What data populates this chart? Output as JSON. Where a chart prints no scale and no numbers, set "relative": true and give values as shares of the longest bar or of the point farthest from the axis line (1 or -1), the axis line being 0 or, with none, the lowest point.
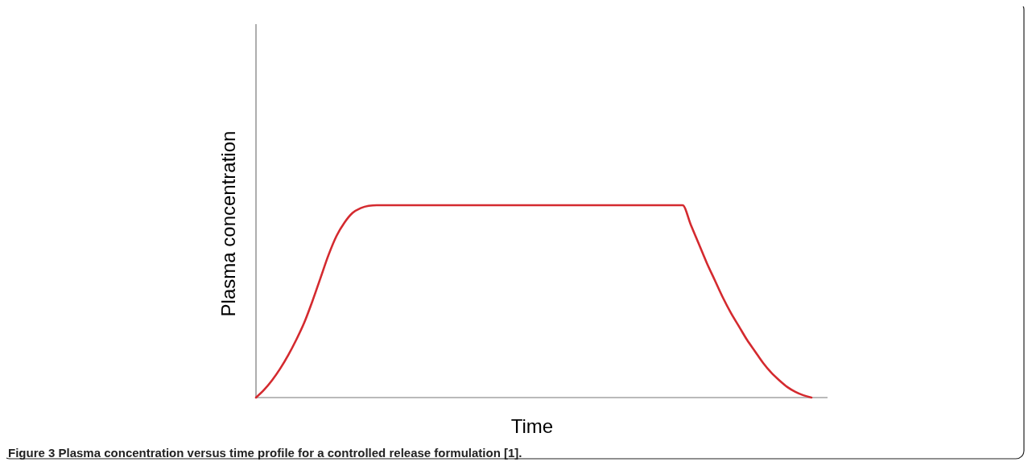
{
  "chart_data": {
    "type": "line",
    "relative": true,
    "xlabel": "Time",
    "ylabel": "Plasma concentration",
    "annotations": [
      "Figure 3 Plasma concentration versus time profile for a controlled release formulation [1]."
    ],
    "categories": [
      null,
      null,
      null,
      null,
      null,
      null,
      null,
      null,
      null,
      null,
      null,
      null,
      null,
      null,
      null,
      null,
      null,
      null,
      null,
      null,
      null,
      null,
      null,
      null,
      null,
      null,
      null,
      null,
      null,
      null,
      null,
      null,
      null,
      null,
      null,
      null,
      null,
      null,
      null,
      null,
      null,
      null,
      null,
      null,
      null,
      null,
      null,
      null,
      null,
      null,
      null,
      null,
      null,
      null,
      null,
      null,
      null,
      null,
      null,
      null,
      null,
      null,
      null,
      null,
      null,
      null,
      null,
      null,
      null,
      null,
      null,
      null
    ],
    "series": [
      {
        "color": "#d42a2f",
        "values": [
          0,
          0.04,
          0.09,
          0.15,
          0.22,
          0.3,
          0.39,
          0.5,
          0.62,
          0.74,
          0.84,
          0.91,
          0.96,
          0.985,
          0.997,
          1,
          1,
          1,
          1,
          1,
          1,
          1,
          1,
          1,
          1,
          1,
          1,
          1,
          1,
          1,
          1,
          1,
          1,
          1,
          1,
          1,
          1,
          1,
          1,
          1,
          1,
          1,
          1,
          1,
          1,
          1,
          1,
          1,
          1,
          1,
          1,
          1,
          1,
          1,
          0.9,
          0.8,
          0.7,
          0.61,
          0.52,
          0.44,
          0.37,
          0.3,
          0.24,
          0.18,
          0.13,
          0.09,
          0.055,
          0.03,
          0.012,
          0,
          null,
          null
        ]
      }
    ]
  }
}
